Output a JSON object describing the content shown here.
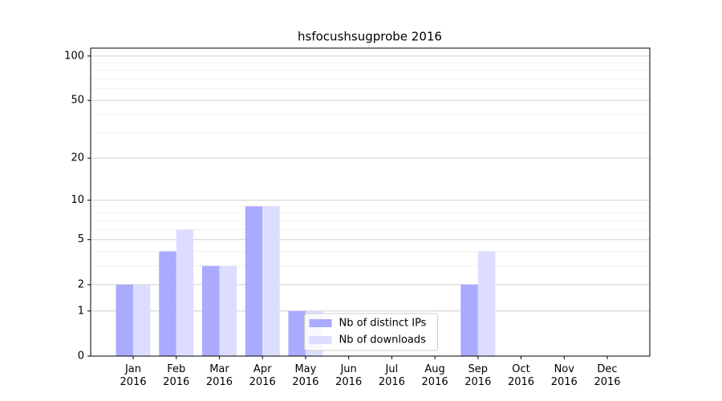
{
  "chart_data": {
    "type": "bar",
    "title": "hsfocushsugprobe 2016",
    "categories": [
      "Jan 2016",
      "Feb 2016",
      "Mar 2016",
      "Apr 2016",
      "May 2016",
      "Jun 2016",
      "Jul 2016",
      "Aug 2016",
      "Sep 2016",
      "Oct 2016",
      "Nov 2016",
      "Dec 2016"
    ],
    "series": [
      {
        "name": "Nb of distinct IPs",
        "color": "#aaaaff",
        "values": [
          2,
          4,
          3,
          9,
          1,
          0,
          0,
          0,
          2,
          0,
          0,
          0
        ]
      },
      {
        "name": "Nb of downloads",
        "color": "#ddddff",
        "values": [
          2,
          6,
          3,
          9,
          1,
          0,
          0,
          0,
          4,
          0,
          0,
          0
        ]
      }
    ],
    "y_scale": "log1p",
    "ylim": [
      0,
      113
    ],
    "yticks": [
      0,
      1,
      2,
      5,
      10,
      20,
      50,
      100
    ],
    "minor_yticks": [
      3,
      4,
      6,
      7,
      8,
      9,
      30,
      40,
      60,
      70,
      80,
      90
    ],
    "grid": true,
    "legend_position": "lower center"
  }
}
